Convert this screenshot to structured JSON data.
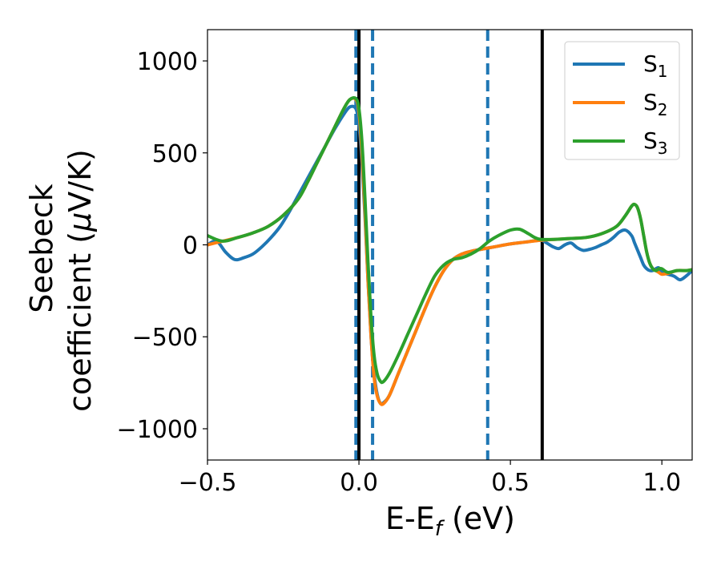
{
  "chart_data": {
    "type": "line",
    "xlabel": {
      "main": "E-E",
      "sub": "f",
      "unit": " (eV)"
    },
    "ylabel": {
      "line1": "Seebeck",
      "line2": "coefficient  (",
      "mu": "μ",
      "line2_end": "V/K)"
    },
    "xlim": [
      -0.5,
      1.1
    ],
    "ylim": [
      -1170,
      1170
    ],
    "x_ticks": [
      -0.5,
      0.0,
      0.5,
      1.0
    ],
    "x_tick_labels": [
      "−0.5",
      "0.0",
      "0.5",
      "1.0"
    ],
    "y_ticks": [
      -1000,
      -500,
      0,
      500,
      1000
    ],
    "y_tick_labels": [
      "−1000",
      "−500",
      "0",
      "500",
      "1000"
    ],
    "grid": false,
    "legend_position": "top-right",
    "series": [
      {
        "name": "S",
        "sub": "1",
        "color": "#1f77b4",
        "x": [
          -0.5,
          -0.47,
          -0.44,
          -0.41,
          -0.38,
          -0.35,
          -0.32,
          -0.29,
          -0.26,
          -0.23,
          -0.2,
          -0.17,
          -0.14,
          -0.11,
          -0.08,
          -0.05,
          -0.03,
          -0.01,
          0.0,
          0.01,
          0.02,
          0.03,
          0.04,
          0.05,
          0.06,
          0.07,
          0.08,
          0.1,
          0.13,
          0.16,
          0.19,
          0.22,
          0.25,
          0.28,
          0.31,
          0.34,
          0.37,
          0.4,
          0.45,
          0.5,
          0.55,
          0.6,
          0.62,
          0.64,
          0.66,
          0.68,
          0.7,
          0.72,
          0.74,
          0.76,
          0.78,
          0.8,
          0.82,
          0.84,
          0.86,
          0.88,
          0.9,
          0.91,
          0.92,
          0.93,
          0.94,
          0.95,
          0.96,
          0.97,
          0.98,
          0.99,
          1.0,
          1.02,
          1.04,
          1.06,
          1.08,
          1.1
        ],
        "y": [
          0,
          20,
          -40,
          -80,
          -70,
          -50,
          -10,
          40,
          100,
          180,
          270,
          360,
          450,
          540,
          630,
          710,
          750,
          740,
          650,
          450,
          150,
          -200,
          -500,
          -700,
          -810,
          -860,
          -860,
          -820,
          -700,
          -580,
          -460,
          -340,
          -230,
          -140,
          -80,
          -50,
          -35,
          -25,
          -10,
          5,
          15,
          25,
          10,
          -10,
          -20,
          0,
          10,
          -15,
          -30,
          -25,
          -15,
          0,
          15,
          40,
          70,
          80,
          50,
          10,
          -30,
          -70,
          -110,
          -130,
          -140,
          -140,
          -130,
          -125,
          -150,
          -160,
          -170,
          -190,
          -170,
          -140
        ]
      },
      {
        "name": "S",
        "sub": "2",
        "color": "#ff7f0e",
        "x": [
          -0.5,
          -0.45,
          -0.4,
          -0.35,
          -0.3,
          -0.25,
          -0.2,
          -0.17,
          -0.14,
          -0.11,
          -0.08,
          -0.05,
          -0.03,
          -0.01,
          0.0,
          0.01,
          0.02,
          0.03,
          0.04,
          0.05,
          0.06,
          0.07,
          0.08,
          0.1,
          0.13,
          0.16,
          0.19,
          0.22,
          0.25,
          0.28,
          0.31,
          0.34,
          0.37,
          0.4,
          0.45,
          0.5,
          0.55,
          0.6,
          0.65,
          0.7,
          0.75,
          0.8,
          0.85,
          0.88,
          0.9,
          0.91,
          0.92,
          0.93,
          0.94,
          0.95,
          0.96,
          0.97,
          0.98,
          0.99,
          1.0,
          1.02,
          1.05,
          1.08,
          1.1
        ],
        "y": [
          0,
          20,
          40,
          65,
          100,
          160,
          250,
          340,
          440,
          540,
          640,
          740,
          790,
          790,
          720,
          500,
          180,
          -200,
          -500,
          -720,
          -820,
          -860,
          -865,
          -820,
          -700,
          -580,
          -460,
          -340,
          -230,
          -140,
          -80,
          -50,
          -35,
          -25,
          -10,
          5,
          15,
          25,
          30,
          35,
          40,
          60,
          100,
          160,
          210,
          220,
          200,
          140,
          50,
          -40,
          -100,
          -130,
          -140,
          -150,
          -160,
          -155,
          -140,
          -140,
          -135
        ]
      },
      {
        "name": "S",
        "sub": "3",
        "color": "#2ca02c",
        "x": [
          -0.5,
          -0.45,
          -0.4,
          -0.35,
          -0.3,
          -0.25,
          -0.2,
          -0.17,
          -0.14,
          -0.11,
          -0.08,
          -0.05,
          -0.03,
          -0.01,
          0.0,
          0.01,
          0.02,
          0.03,
          0.04,
          0.05,
          0.06,
          0.07,
          0.08,
          0.1,
          0.13,
          0.16,
          0.19,
          0.22,
          0.25,
          0.28,
          0.31,
          0.34,
          0.37,
          0.4,
          0.43,
          0.46,
          0.5,
          0.53,
          0.56,
          0.58,
          0.6,
          0.65,
          0.7,
          0.75,
          0.8,
          0.85,
          0.88,
          0.9,
          0.91,
          0.92,
          0.93,
          0.94,
          0.95,
          0.96,
          0.97,
          0.98,
          0.99,
          1.0,
          1.02,
          1.05,
          1.08,
          1.1
        ],
        "y": [
          50,
          20,
          40,
          65,
          100,
          160,
          250,
          340,
          440,
          540,
          640,
          740,
          790,
          795,
          740,
          560,
          250,
          -100,
          -400,
          -600,
          -700,
          -740,
          -745,
          -700,
          -600,
          -490,
          -380,
          -270,
          -170,
          -110,
          -80,
          -70,
          -50,
          -20,
          20,
          50,
          80,
          85,
          60,
          40,
          30,
          30,
          35,
          40,
          60,
          100,
          160,
          210,
          220,
          200,
          140,
          50,
          -40,
          -100,
          -130,
          -140,
          -130,
          -130,
          -150,
          -140,
          -140,
          -135
        ]
      }
    ],
    "vlines": [
      {
        "x": -0.01,
        "style": "dashed",
        "color": "#1f77b4"
      },
      {
        "x": 0.0,
        "style": "solid",
        "color": "#000000"
      },
      {
        "x": 0.045,
        "style": "dashed",
        "color": "#1f77b4"
      },
      {
        "x": 0.425,
        "style": "dashed",
        "color": "#1f77b4"
      },
      {
        "x": 0.605,
        "style": "solid",
        "color": "#000000"
      }
    ]
  }
}
